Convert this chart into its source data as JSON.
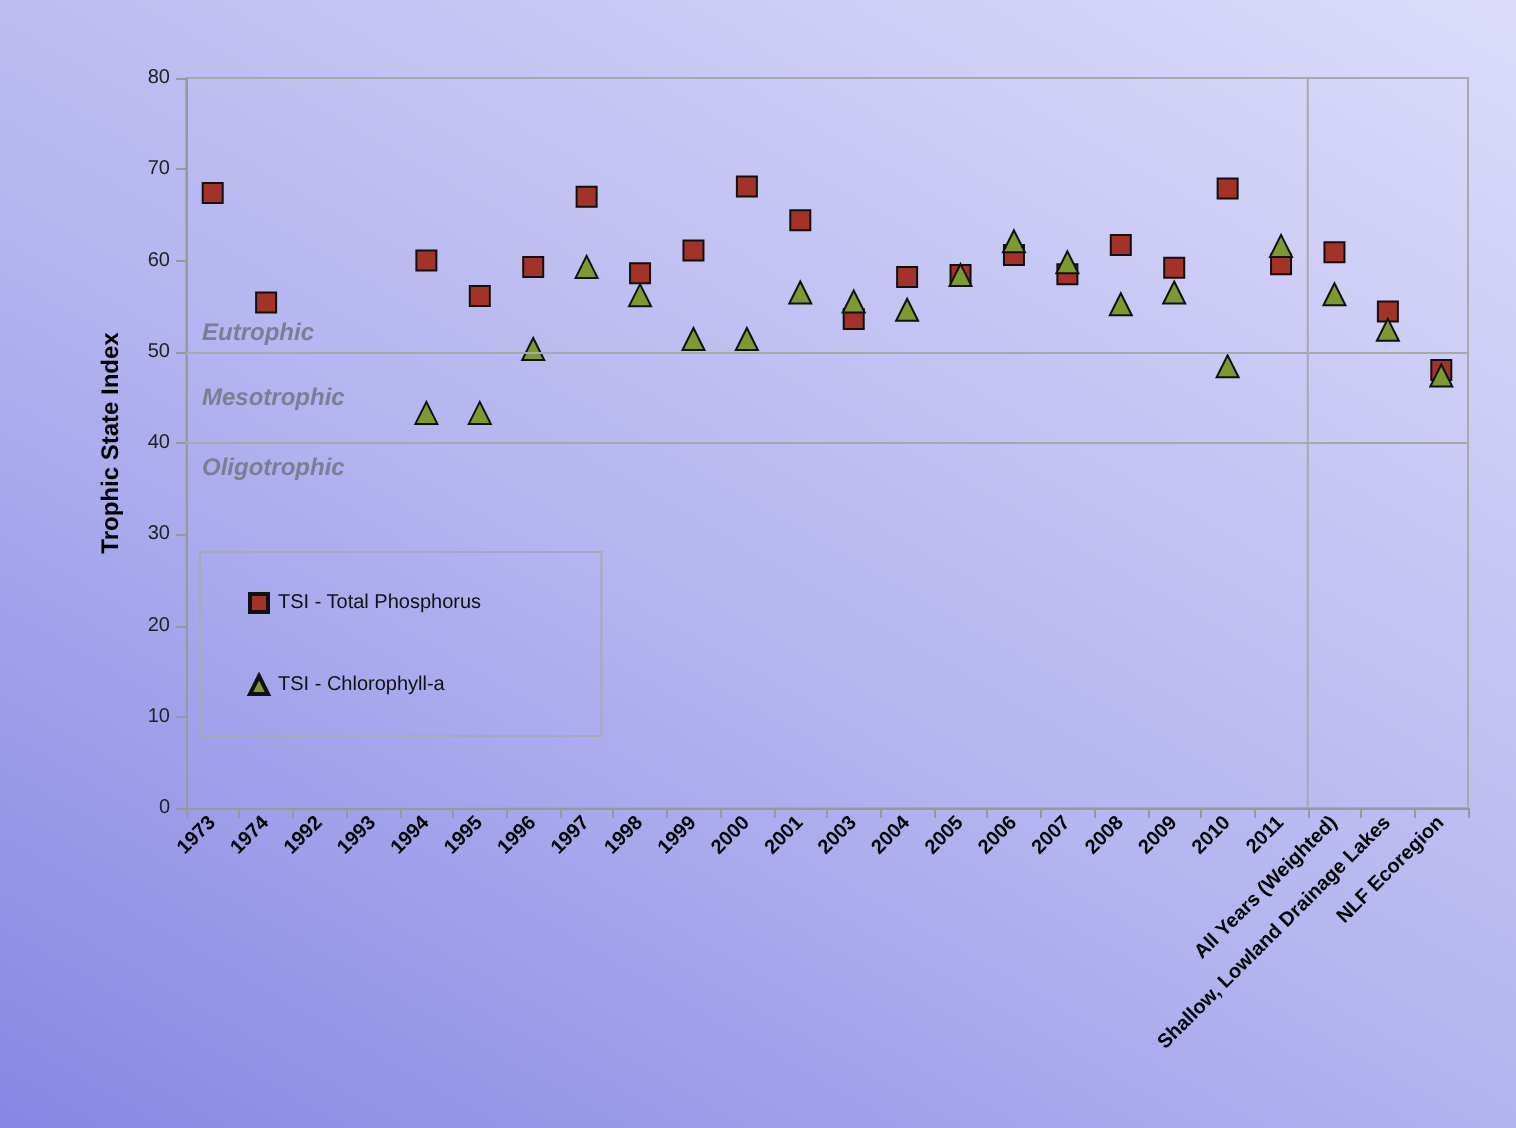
{
  "chart_data": {
    "type": "scatter",
    "ylabel": "Trophic State Index",
    "categories": [
      "1973",
      "1974",
      "1992",
      "1993",
      "1994",
      "1995",
      "1996",
      "1997",
      "1998",
      "1999",
      "2000",
      "2001",
      "2003",
      "2004",
      "2005",
      "2006",
      "2007",
      "2008",
      "2009",
      "2010",
      "2011",
      "All Years (Weighted)",
      "Shallow, Lowland Drainage Lakes",
      "NLF Ecoregion"
    ],
    "series": [
      {
        "name": "TSI - Total Phosphorus",
        "color": "#a33228",
        "marker": "square",
        "values": [
          67.4,
          55.4,
          null,
          null,
          60,
          56.1,
          59.3,
          67,
          58.6,
          61.1,
          68.1,
          64.4,
          53.6,
          58.2,
          58.4,
          60.6,
          58.5,
          61.7,
          59.2,
          67.9,
          59.6,
          60.9,
          54.4,
          48
        ]
      },
      {
        "name": "TSI - Chlorophyll-a",
        "color": "#7c9a30",
        "marker": "triangle",
        "values": [
          null,
          null,
          null,
          null,
          43.3,
          43.3,
          50.3,
          59.3,
          56.2,
          51.4,
          51.4,
          56.5,
          55.5,
          54.6,
          58.4,
          62.1,
          59.8,
          55.2,
          56.5,
          48.4,
          61.6,
          56.3,
          52.4,
          47.4
        ]
      }
    ],
    "ylim": [
      0,
      80
    ],
    "yticks": [
      0,
      10,
      20,
      30,
      40,
      50,
      60,
      70,
      80
    ],
    "ref_lines": [
      {
        "axis": "y",
        "value": 50
      },
      {
        "axis": "y",
        "value": 40
      }
    ],
    "annotations": [
      "Eutrophic",
      "Mesotrophic",
      "Oligotrophic"
    ],
    "legend": "bottom left",
    "grid": false
  }
}
